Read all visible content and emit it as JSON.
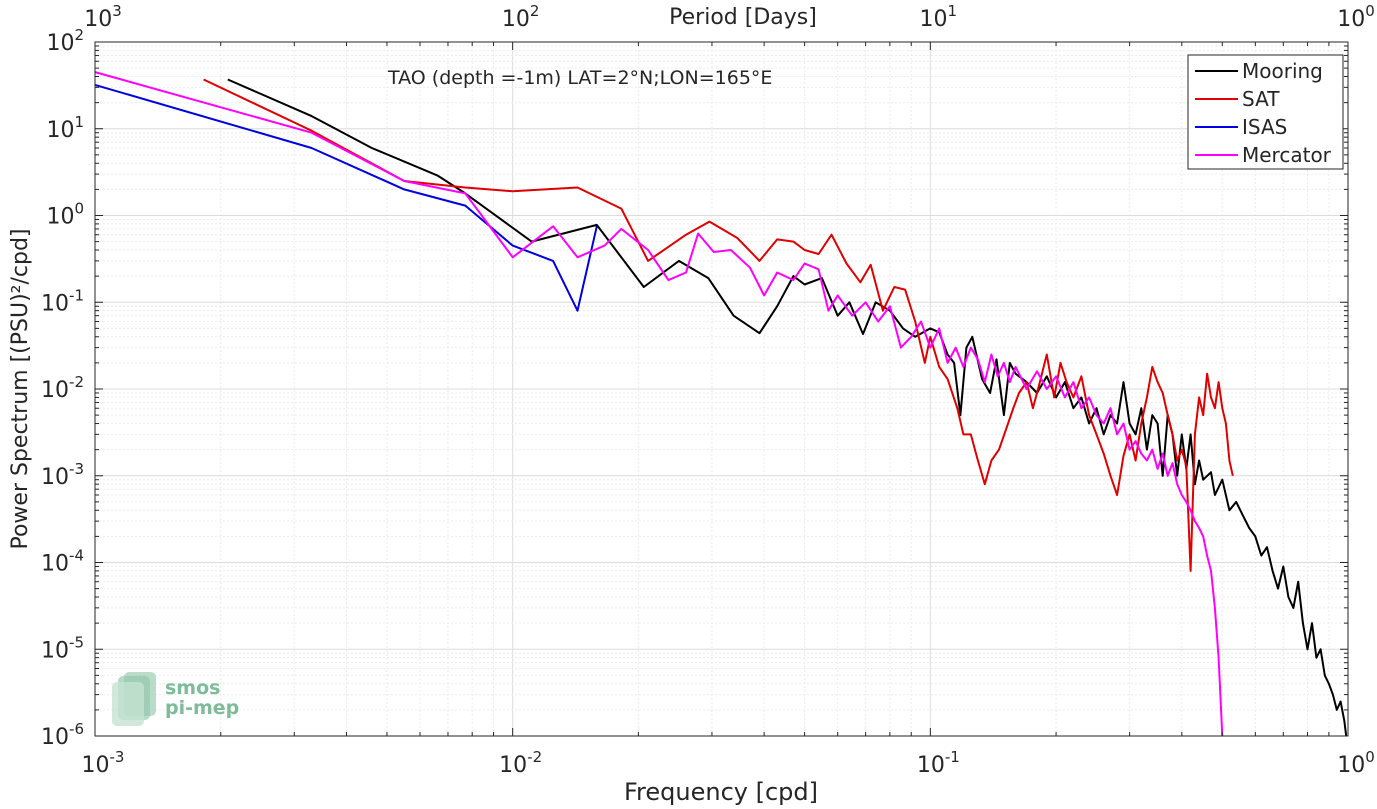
{
  "chart_data": {
    "type": "line",
    "title": "TAO (depth =-1m) LAT=2°N;LON=165°E",
    "xlabel": "Frequency [cpd]",
    "ylabel": "Power Spectrum [(PSU)²/cpd]",
    "top_axis_label": "Period [Days]",
    "xscale": "log",
    "yscale": "log",
    "xlim": [
      0.001,
      1
    ],
    "ylim": [
      1e-06,
      100
    ],
    "grid": true,
    "legend_position": "top-right",
    "x_ticks": [
      {
        "value": 0.001,
        "base": "10",
        "exp": "-3"
      },
      {
        "value": 0.01,
        "base": "10",
        "exp": "-2"
      },
      {
        "value": 0.1,
        "base": "10",
        "exp": "-1"
      },
      {
        "value": 1,
        "base": "10",
        "exp": "0"
      }
    ],
    "top_ticks": [
      {
        "value": 0.001,
        "base": "10",
        "exp": "3"
      },
      {
        "value": 0.01,
        "base": "10",
        "exp": "2"
      },
      {
        "value": 0.1,
        "base": "10",
        "exp": "1"
      },
      {
        "value": 1,
        "base": "10",
        "exp": "0"
      }
    ],
    "y_ticks": [
      {
        "value": 100,
        "base": "10",
        "exp": "2"
      },
      {
        "value": 10,
        "base": "10",
        "exp": "1"
      },
      {
        "value": 1,
        "base": "10",
        "exp": "0"
      },
      {
        "value": 0.1,
        "base": "10",
        "exp": "-1"
      },
      {
        "value": 0.01,
        "base": "10",
        "exp": "-2"
      },
      {
        "value": 0.001,
        "base": "10",
        "exp": "-3"
      },
      {
        "value": 0.0001,
        "base": "10",
        "exp": "-4"
      },
      {
        "value": 1e-05,
        "base": "10",
        "exp": "-5"
      },
      {
        "value": 1e-06,
        "base": "10",
        "exp": "-6"
      }
    ],
    "series": [
      {
        "name": "Mooring",
        "color": "#000000",
        "points": [
          [
            0.00208,
            37
          ],
          [
            0.0033,
            14
          ],
          [
            0.0046,
            6
          ],
          [
            0.0066,
            2.9
          ],
          [
            0.0077,
            1.8
          ],
          [
            0.0111,
            0.5
          ],
          [
            0.0159,
            0.78
          ],
          [
            0.0206,
            0.15
          ],
          [
            0.025,
            0.3
          ],
          [
            0.0294,
            0.19
          ],
          [
            0.0338,
            0.07
          ],
          [
            0.039,
            0.044
          ],
          [
            0.043,
            0.09
          ],
          [
            0.047,
            0.2
          ],
          [
            0.05,
            0.16
          ],
          [
            0.055,
            0.19
          ],
          [
            0.06,
            0.07
          ],
          [
            0.064,
            0.1
          ],
          [
            0.069,
            0.043
          ],
          [
            0.074,
            0.1
          ],
          [
            0.08,
            0.08
          ],
          [
            0.086,
            0.05
          ],
          [
            0.092,
            0.04
          ],
          [
            0.1,
            0.05
          ],
          [
            0.105,
            0.045
          ],
          [
            0.11,
            0.025
          ],
          [
            0.114,
            0.02
          ],
          [
            0.118,
            0.005
          ],
          [
            0.122,
            0.03
          ],
          [
            0.126,
            0.04
          ],
          [
            0.133,
            0.013
          ],
          [
            0.139,
            0.009
          ],
          [
            0.144,
            0.022
          ],
          [
            0.15,
            0.005
          ],
          [
            0.155,
            0.02
          ],
          [
            0.16,
            0.015
          ],
          [
            0.17,
            0.012
          ],
          [
            0.18,
            0.009
          ],
          [
            0.19,
            0.014
          ],
          [
            0.2,
            0.008
          ],
          [
            0.21,
            0.012
          ],
          [
            0.22,
            0.006
          ],
          [
            0.23,
            0.008
          ],
          [
            0.24,
            0.004
          ],
          [
            0.25,
            0.006
          ],
          [
            0.26,
            0.003
          ],
          [
            0.27,
            0.005
          ],
          [
            0.28,
            0.004
          ],
          [
            0.29,
            0.012
          ],
          [
            0.3,
            0.004
          ],
          [
            0.31,
            0.003
          ],
          [
            0.32,
            0.006
          ],
          [
            0.33,
            0.002
          ],
          [
            0.34,
            0.005
          ],
          [
            0.35,
            0.004
          ],
          [
            0.36,
            0.001
          ],
          [
            0.37,
            0.005
          ],
          [
            0.38,
            0.003
          ],
          [
            0.39,
            0.001
          ],
          [
            0.4,
            0.003
          ],
          [
            0.41,
            0.0012
          ],
          [
            0.42,
            0.003
          ],
          [
            0.43,
            0.0008
          ],
          [
            0.44,
            0.0015
          ],
          [
            0.45,
            0.0009
          ],
          [
            0.47,
            0.0011
          ],
          [
            0.48,
            0.0006
          ],
          [
            0.5,
            0.0009
          ],
          [
            0.52,
            0.0004
          ],
          [
            0.54,
            0.0005
          ],
          [
            0.56,
            0.00035
          ],
          [
            0.58,
            0.00025
          ],
          [
            0.6,
            0.0002
          ],
          [
            0.62,
            0.00012
          ],
          [
            0.64,
            0.00015
          ],
          [
            0.66,
            8e-05
          ],
          [
            0.68,
            5e-05
          ],
          [
            0.7,
            9e-05
          ],
          [
            0.72,
            4e-05
          ],
          [
            0.74,
            3e-05
          ],
          [
            0.76,
            6e-05
          ],
          [
            0.78,
            2e-05
          ],
          [
            0.8,
            1e-05
          ],
          [
            0.82,
            2e-05
          ],
          [
            0.84,
            8e-06
          ],
          [
            0.86,
            1e-05
          ],
          [
            0.88,
            5e-06
          ],
          [
            0.9,
            4e-06
          ],
          [
            0.92,
            3e-06
          ],
          [
            0.94,
            2e-06
          ],
          [
            0.96,
            2.5e-06
          ],
          [
            0.98,
            1.5e-06
          ],
          [
            0.99,
            1e-06
          ]
        ]
      },
      {
        "name": "SAT",
        "color": "#e00000",
        "points": [
          [
            0.00182,
            37
          ],
          [
            0.0033,
            9.5
          ],
          [
            0.0055,
            2.5
          ],
          [
            0.0077,
            2.1
          ],
          [
            0.01,
            1.9
          ],
          [
            0.0143,
            2.1
          ],
          [
            0.0182,
            1.2
          ],
          [
            0.0211,
            0.3
          ],
          [
            0.026,
            0.6
          ],
          [
            0.0296,
            0.85
          ],
          [
            0.0345,
            0.55
          ],
          [
            0.039,
            0.3
          ],
          [
            0.043,
            0.53
          ],
          [
            0.047,
            0.5
          ],
          [
            0.05,
            0.4
          ],
          [
            0.054,
            0.36
          ],
          [
            0.058,
            0.6
          ],
          [
            0.063,
            0.28
          ],
          [
            0.068,
            0.17
          ],
          [
            0.072,
            0.27
          ],
          [
            0.077,
            0.08
          ],
          [
            0.082,
            0.15
          ],
          [
            0.087,
            0.14
          ],
          [
            0.092,
            0.06
          ],
          [
            0.097,
            0.02
          ],
          [
            0.1,
            0.04
          ],
          [
            0.105,
            0.018
          ],
          [
            0.11,
            0.013
          ],
          [
            0.116,
            0.006
          ],
          [
            0.12,
            0.003
          ],
          [
            0.125,
            0.003
          ],
          [
            0.13,
            0.0015
          ],
          [
            0.135,
            0.0008
          ],
          [
            0.14,
            0.0015
          ],
          [
            0.146,
            0.002
          ],
          [
            0.152,
            0.0035
          ],
          [
            0.158,
            0.006
          ],
          [
            0.163,
            0.009
          ],
          [
            0.17,
            0.012
          ],
          [
            0.176,
            0.006
          ],
          [
            0.182,
            0.011
          ],
          [
            0.19,
            0.025
          ],
          [
            0.198,
            0.008
          ],
          [
            0.205,
            0.02
          ],
          [
            0.212,
            0.012
          ],
          [
            0.22,
            0.008
          ],
          [
            0.23,
            0.014
          ],
          [
            0.24,
            0.005
          ],
          [
            0.25,
            0.003
          ],
          [
            0.26,
            0.0018
          ],
          [
            0.27,
            0.001
          ],
          [
            0.28,
            0.0006
          ],
          [
            0.29,
            0.0017
          ],
          [
            0.3,
            0.003
          ],
          [
            0.31,
            0.0015
          ],
          [
            0.32,
            0.004
          ],
          [
            0.33,
            0.008
          ],
          [
            0.34,
            0.018
          ],
          [
            0.35,
            0.012
          ],
          [
            0.36,
            0.009
          ],
          [
            0.37,
            0.005
          ],
          [
            0.38,
            0.003
          ],
          [
            0.39,
            0.0015
          ],
          [
            0.4,
            0.002
          ],
          [
            0.41,
            0.0013
          ],
          [
            0.42,
            8e-05
          ],
          [
            0.43,
            0.003
          ],
          [
            0.44,
            0.008
          ],
          [
            0.45,
            0.005
          ],
          [
            0.46,
            0.015
          ],
          [
            0.47,
            0.008
          ],
          [
            0.48,
            0.006
          ],
          [
            0.49,
            0.012
          ],
          [
            0.5,
            0.006
          ],
          [
            0.51,
            0.004
          ],
          [
            0.52,
            0.0015
          ],
          [
            0.53,
            0.001
          ]
        ]
      },
      {
        "name": "ISAS",
        "color": "#0000e0",
        "points": [
          [
            0.001,
            32
          ],
          [
            0.0033,
            6
          ],
          [
            0.0055,
            2
          ],
          [
            0.0077,
            1.3
          ],
          [
            0.01,
            0.45
          ],
          [
            0.0125,
            0.3
          ],
          [
            0.0143,
            0.08
          ],
          [
            0.0159,
            0.75
          ]
        ]
      },
      {
        "name": "Mercator",
        "color": "#ff00ff",
        "points": [
          [
            0.001,
            45
          ],
          [
            0.0033,
            9
          ],
          [
            0.0055,
            2.5
          ],
          [
            0.0077,
            1.8
          ],
          [
            0.01,
            0.33
          ],
          [
            0.0125,
            0.75
          ],
          [
            0.0143,
            0.33
          ],
          [
            0.0166,
            0.45
          ],
          [
            0.0182,
            0.7
          ],
          [
            0.0211,
            0.4
          ],
          [
            0.0236,
            0.18
          ],
          [
            0.026,
            0.22
          ],
          [
            0.0278,
            0.62
          ],
          [
            0.0303,
            0.38
          ],
          [
            0.0333,
            0.4
          ],
          [
            0.037,
            0.25
          ],
          [
            0.04,
            0.12
          ],
          [
            0.043,
            0.22
          ],
          [
            0.047,
            0.18
          ],
          [
            0.05,
            0.28
          ],
          [
            0.054,
            0.24
          ],
          [
            0.057,
            0.08
          ],
          [
            0.06,
            0.12
          ],
          [
            0.065,
            0.07
          ],
          [
            0.07,
            0.1
          ],
          [
            0.075,
            0.06
          ],
          [
            0.08,
            0.09
          ],
          [
            0.085,
            0.03
          ],
          [
            0.09,
            0.04
          ],
          [
            0.095,
            0.06
          ],
          [
            0.1,
            0.03
          ],
          [
            0.105,
            0.05
          ],
          [
            0.11,
            0.02
          ],
          [
            0.115,
            0.03
          ],
          [
            0.12,
            0.018
          ],
          [
            0.125,
            0.03
          ],
          [
            0.13,
            0.022
          ],
          [
            0.135,
            0.012
          ],
          [
            0.14,
            0.025
          ],
          [
            0.145,
            0.014
          ],
          [
            0.15,
            0.02
          ],
          [
            0.155,
            0.012
          ],
          [
            0.16,
            0.018
          ],
          [
            0.17,
            0.01
          ],
          [
            0.18,
            0.016
          ],
          [
            0.19,
            0.01
          ],
          [
            0.2,
            0.014
          ],
          [
            0.21,
            0.008
          ],
          [
            0.22,
            0.012
          ],
          [
            0.23,
            0.006
          ],
          [
            0.24,
            0.008
          ],
          [
            0.25,
            0.005
          ],
          [
            0.26,
            0.004
          ],
          [
            0.27,
            0.006
          ],
          [
            0.28,
            0.003
          ],
          [
            0.29,
            0.004
          ],
          [
            0.3,
            0.002
          ],
          [
            0.31,
            0.0025
          ],
          [
            0.32,
            0.0018
          ],
          [
            0.33,
            0.0015
          ],
          [
            0.34,
            0.002
          ],
          [
            0.35,
            0.0012
          ],
          [
            0.36,
            0.0018
          ],
          [
            0.37,
            0.001
          ],
          [
            0.38,
            0.0014
          ],
          [
            0.39,
            0.0008
          ],
          [
            0.4,
            0.0006
          ],
          [
            0.41,
            0.0005
          ],
          [
            0.42,
            0.0004
          ],
          [
            0.43,
            0.0003
          ],
          [
            0.44,
            0.00025
          ],
          [
            0.45,
            0.0002
          ],
          [
            0.46,
            0.00012
          ],
          [
            0.47,
            8e-05
          ],
          [
            0.48,
            3e-05
          ],
          [
            0.49,
            8e-06
          ],
          [
            0.5,
            1e-06
          ]
        ]
      }
    ]
  },
  "logo": {
    "line1": "smos",
    "line2": "pi-mep",
    "color": "#7dbb99"
  }
}
